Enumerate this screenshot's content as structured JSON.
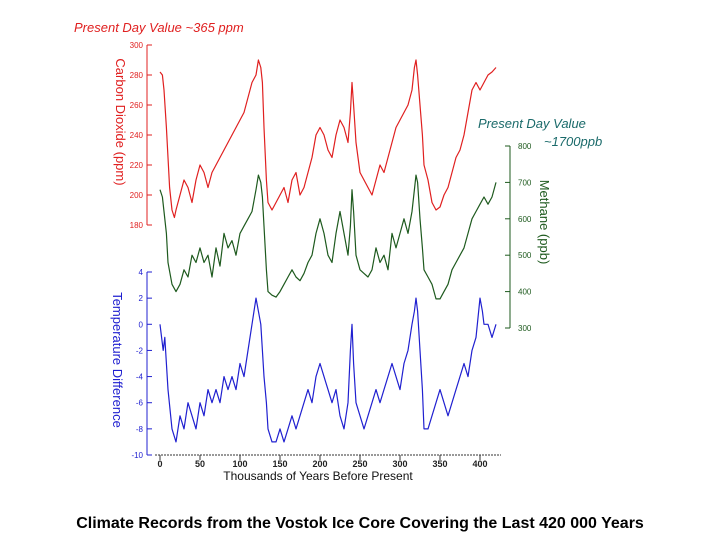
{
  "caption": "Climate Records from the Vostok Ice Core Covering the Last 420 000 Years",
  "annotations": {
    "co2_present": "Present Day Value ~365 ppm",
    "ch4_present_line1": "Present Day Value",
    "ch4_present_line2": "~1700ppb"
  },
  "chart_data": {
    "type": "line",
    "xlabel": "Thousands of Years Before Present",
    "x_ticks": [
      "0",
      "50",
      "100",
      "150",
      "200",
      "250",
      "300",
      "350",
      "400"
    ],
    "xlim": [
      0,
      420
    ],
    "panels": [
      {
        "name": "Carbon Dioxide (ppm)",
        "ylabel": "Carbon Dioxide (ppm)",
        "color": "#e02020",
        "ylim": [
          180,
          300
        ],
        "y_ticks": [
          "180",
          "200",
          "220",
          "240",
          "260",
          "280",
          "300"
        ],
        "axis_side": "left",
        "x": [
          0,
          3,
          5,
          8,
          10,
          12,
          15,
          18,
          20,
          25,
          30,
          35,
          40,
          45,
          50,
          55,
          60,
          65,
          70,
          75,
          80,
          85,
          90,
          95,
          100,
          105,
          110,
          115,
          120,
          123,
          126,
          128,
          130,
          133,
          135,
          138,
          140,
          145,
          150,
          155,
          160,
          165,
          170,
          175,
          180,
          185,
          190,
          195,
          200,
          205,
          210,
          215,
          220,
          225,
          230,
          235,
          238,
          240,
          242,
          245,
          250,
          255,
          260,
          265,
          270,
          275,
          280,
          285,
          290,
          295,
          300,
          305,
          310,
          315,
          318,
          320,
          322,
          325,
          328,
          330,
          335,
          340,
          345,
          350,
          355,
          360,
          365,
          370,
          375,
          380,
          385,
          390,
          395,
          400,
          405,
          410,
          415,
          420
        ],
        "values": [
          282,
          280,
          270,
          245,
          225,
          205,
          190,
          185,
          190,
          200,
          210,
          205,
          195,
          210,
          220,
          215,
          205,
          215,
          220,
          225,
          230,
          235,
          240,
          245,
          250,
          255,
          265,
          275,
          280,
          290,
          285,
          275,
          245,
          210,
          195,
          192,
          190,
          195,
          200,
          205,
          195,
          210,
          215,
          200,
          205,
          215,
          225,
          240,
          245,
          240,
          230,
          225,
          240,
          250,
          245,
          235,
          255,
          275,
          260,
          235,
          215,
          210,
          205,
          200,
          210,
          220,
          215,
          225,
          235,
          245,
          250,
          255,
          260,
          270,
          285,
          290,
          280,
          260,
          240,
          220,
          210,
          195,
          190,
          192,
          200,
          205,
          215,
          225,
          230,
          240,
          255,
          270,
          275,
          270,
          275,
          280,
          282,
          285
        ]
      },
      {
        "name": "Methane (ppb)",
        "ylabel": "Methane (ppb)",
        "color": "#1e5a1e",
        "ylim": [
          300,
          800
        ],
        "y_ticks": [
          "300",
          "400",
          "500",
          "600",
          "700",
          "800"
        ],
        "axis_side": "right",
        "x": [
          0,
          3,
          5,
          8,
          10,
          15,
          20,
          25,
          30,
          35,
          40,
          45,
          50,
          55,
          60,
          65,
          70,
          75,
          80,
          85,
          90,
          95,
          100,
          105,
          110,
          115,
          120,
          123,
          126,
          128,
          130,
          133,
          135,
          140,
          145,
          150,
          155,
          160,
          165,
          170,
          175,
          180,
          185,
          190,
          195,
          200,
          205,
          210,
          215,
          220,
          225,
          230,
          235,
          238,
          240,
          242,
          245,
          250,
          255,
          260,
          265,
          270,
          275,
          280,
          285,
          290,
          295,
          300,
          305,
          310,
          315,
          318,
          320,
          322,
          325,
          328,
          330,
          335,
          340,
          345,
          350,
          355,
          360,
          365,
          370,
          375,
          380,
          385,
          390,
          395,
          400,
          405,
          410,
          415,
          420
        ],
        "values": [
          680,
          660,
          620,
          560,
          480,
          420,
          400,
          420,
          460,
          440,
          500,
          480,
          520,
          480,
          500,
          440,
          520,
          470,
          560,
          520,
          540,
          500,
          560,
          580,
          600,
          620,
          680,
          720,
          700,
          660,
          580,
          460,
          400,
          390,
          385,
          400,
          420,
          440,
          460,
          440,
          430,
          450,
          480,
          500,
          560,
          600,
          560,
          500,
          480,
          560,
          620,
          560,
          500,
          580,
          680,
          620,
          500,
          460,
          450,
          440,
          460,
          520,
          480,
          500,
          460,
          560,
          520,
          560,
          600,
          560,
          620,
          680,
          720,
          700,
          600,
          520,
          460,
          440,
          420,
          380,
          380,
          400,
          420,
          460,
          480,
          500,
          520,
          560,
          600,
          620,
          640,
          660,
          640,
          660,
          700
        ]
      },
      {
        "name": "Temperature Difference",
        "ylabel": "Temperature Difference",
        "color": "#2020d0",
        "ylim": [
          -10,
          4
        ],
        "y_ticks": [
          "-10",
          "-8",
          "-6",
          "-4",
          "-2",
          "0",
          "2",
          "4"
        ],
        "axis_side": "left",
        "x": [
          0,
          2,
          4,
          6,
          8,
          10,
          15,
          20,
          25,
          30,
          35,
          40,
          45,
          50,
          55,
          60,
          65,
          70,
          75,
          80,
          85,
          90,
          95,
          100,
          105,
          110,
          115,
          120,
          123,
          126,
          128,
          130,
          133,
          135,
          140,
          145,
          150,
          155,
          160,
          165,
          170,
          175,
          180,
          185,
          190,
          195,
          200,
          205,
          210,
          215,
          220,
          225,
          230,
          235,
          238,
          240,
          242,
          245,
          250,
          255,
          260,
          265,
          270,
          275,
          280,
          285,
          290,
          295,
          300,
          305,
          310,
          315,
          318,
          320,
          322,
          325,
          328,
          330,
          335,
          340,
          345,
          350,
          355,
          360,
          365,
          370,
          375,
          380,
          385,
          390,
          395,
          400,
          403,
          405,
          410,
          415,
          420
        ],
        "values": [
          0,
          -1,
          -2,
          -1,
          -3,
          -5,
          -8,
          -9,
          -7,
          -8,
          -6,
          -7,
          -8,
          -6,
          -7,
          -5,
          -6,
          -5,
          -6,
          -4,
          -5,
          -4,
          -5,
          -3,
          -4,
          -2,
          0,
          2,
          1,
          0,
          -2,
          -4,
          -6,
          -8,
          -9,
          -9,
          -8,
          -9,
          -8,
          -7,
          -8,
          -7,
          -6,
          -5,
          -6,
          -4,
          -3,
          -4,
          -5,
          -6,
          -5,
          -7,
          -8,
          -6,
          -2,
          0,
          -3,
          -6,
          -7,
          -8,
          -7,
          -6,
          -5,
          -6,
          -5,
          -4,
          -3,
          -4,
          -5,
          -3,
          -2,
          0,
          1,
          2,
          1,
          -2,
          -5,
          -8,
          -8,
          -7,
          -6,
          -5,
          -6,
          -7,
          -6,
          -5,
          -4,
          -3,
          -4,
          -2,
          -1,
          2,
          1,
          0,
          0,
          -1,
          0
        ]
      }
    ]
  }
}
